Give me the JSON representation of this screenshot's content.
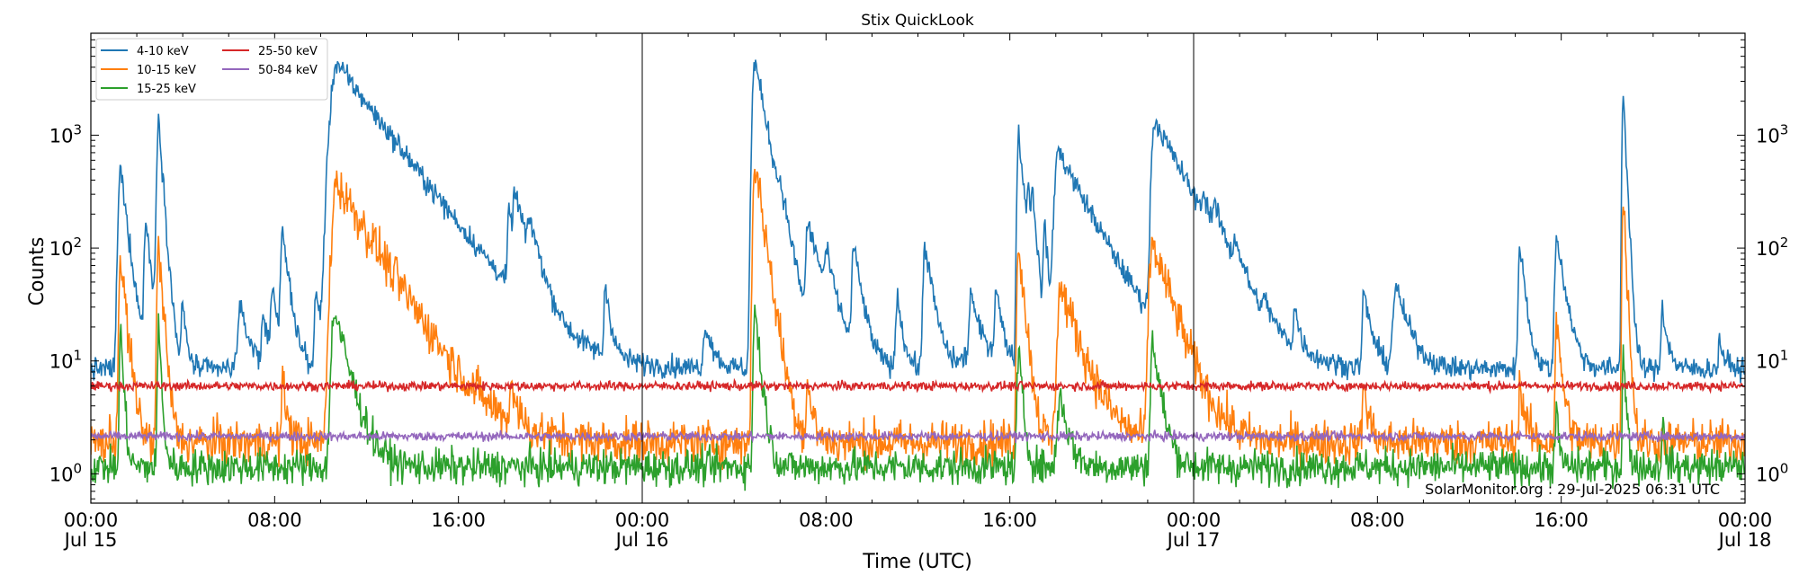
{
  "chart_data": {
    "type": "line",
    "title": "Stix QuickLook",
    "xlabel": "Time (UTC)",
    "ylabel": "Counts",
    "yscale": "log",
    "ylim": [
      0.55,
      8000
    ],
    "xlim_hours": [
      0,
      72
    ],
    "day_dividers_hours": [
      24,
      48
    ],
    "x_ticks": [
      {
        "h": 0,
        "time": "00:00",
        "date": "Jul 15"
      },
      {
        "h": 8,
        "time": "08:00",
        "date": ""
      },
      {
        "h": 16,
        "time": "16:00",
        "date": ""
      },
      {
        "h": 24,
        "time": "00:00",
        "date": "Jul 16"
      },
      {
        "h": 32,
        "time": "08:00",
        "date": ""
      },
      {
        "h": 40,
        "time": "16:00",
        "date": ""
      },
      {
        "h": 48,
        "time": "00:00",
        "date": "Jul 17"
      },
      {
        "h": 56,
        "time": "08:00",
        "date": ""
      },
      {
        "h": 64,
        "time": "16:00",
        "date": ""
      },
      {
        "h": 72,
        "time": "00:00",
        "date": "Jul 18"
      }
    ],
    "y_ticks": [
      {
        "v": 1,
        "base": "10",
        "exp": "0"
      },
      {
        "v": 10,
        "base": "10",
        "exp": "1"
      },
      {
        "v": 100,
        "base": "10",
        "exp": "2"
      },
      {
        "v": 1000,
        "base": "10",
        "exp": "3"
      }
    ],
    "legend_position": "upper-left",
    "credit": "SolarMonitor.org : 29-Jul-2025 06:31 UTC",
    "series": [
      {
        "name": "4-10 keV",
        "color": "#1f77b4",
        "baseline": 8.5,
        "noise": 0.05,
        "peaks": [
          [
            1.3,
            500,
            0.08,
            0.25
          ],
          [
            2.4,
            170,
            0.06,
            0.2
          ],
          [
            2.95,
            1450,
            0.06,
            0.15
          ],
          [
            4,
            30,
            0.05,
            0.15
          ],
          [
            6.5,
            28,
            0.1,
            0.4
          ],
          [
            7.5,
            25,
            0.05,
            0.2
          ],
          [
            7.9,
            45,
            0.06,
            0.25
          ],
          [
            8.35,
            130,
            0.06,
            0.25
          ],
          [
            9.8,
            40,
            0.05,
            0.2
          ],
          [
            10.3,
            75,
            0.05,
            0.2
          ],
          [
            10.7,
            4300,
            0.2,
            1.6
          ],
          [
            13.5,
            12,
            0.3,
            1
          ],
          [
            18.2,
            170,
            0.05,
            0.4
          ],
          [
            18.45,
            200,
            0.05,
            0.5
          ],
          [
            19.1,
            100,
            0.05,
            0.4
          ],
          [
            22.4,
            45,
            0.05,
            0.2
          ],
          [
            26.8,
            20,
            0.1,
            0.3
          ],
          [
            28.9,
            4600,
            0.08,
            0.4
          ],
          [
            30.0,
            120,
            0.06,
            0.3
          ],
          [
            31.2,
            150,
            0.06,
            0.6
          ],
          [
            32.0,
            60,
            0.05,
            0.3
          ],
          [
            33.2,
            100,
            0.06,
            0.3
          ],
          [
            35.1,
            40,
            0.05,
            0.2
          ],
          [
            36.3,
            110,
            0.06,
            0.3
          ],
          [
            38.3,
            40,
            0.05,
            0.2
          ],
          [
            39.4,
            45,
            0.05,
            0.2
          ],
          [
            38.8,
            15,
            0.5,
            1
          ],
          [
            40.38,
            1050,
            0.05,
            0.2
          ],
          [
            40.8,
            280,
            0.04,
            0.15
          ],
          [
            41.0,
            220,
            0.04,
            0.15
          ],
          [
            41.5,
            160,
            0.04,
            0.15
          ],
          [
            42.1,
            730,
            0.12,
            1.1
          ],
          [
            46.3,
            1350,
            0.1,
            1.1
          ],
          [
            48.4,
            110,
            0.05,
            0.4
          ],
          [
            48.9,
            90,
            0.05,
            0.4
          ],
          [
            49.8,
            60,
            0.06,
            0.3
          ],
          [
            51.1,
            20,
            0.05,
            0.2
          ],
          [
            52.4,
            25,
            0.05,
            0.2
          ],
          [
            55.4,
            40,
            0.05,
            0.3
          ],
          [
            56.8,
            45,
            0.1,
            0.5
          ],
          [
            62.2,
            115,
            0.05,
            0.2
          ],
          [
            63.8,
            130,
            0.06,
            0.3
          ],
          [
            66.7,
            2400,
            0.04,
            0.1
          ],
          [
            68.4,
            30,
            0.05,
            0.2
          ],
          [
            70.9,
            15,
            0.05,
            0.2
          ]
        ]
      },
      {
        "name": "10-15 keV",
        "color": "#ff7f0e",
        "baseline": 1.9,
        "noise": 0.1,
        "peaks": [
          [
            1.3,
            80,
            0.06,
            0.2
          ],
          [
            2.95,
            110,
            0.05,
            0.15
          ],
          [
            8.35,
            6,
            0.05,
            0.2
          ],
          [
            10.7,
            380,
            0.15,
            1.3
          ],
          [
            18.3,
            6,
            0.05,
            0.2
          ],
          [
            28.9,
            600,
            0.06,
            0.3
          ],
          [
            40.38,
            120,
            0.05,
            0.2
          ],
          [
            42.2,
            45,
            0.1,
            0.7
          ],
          [
            46.2,
            110,
            0.1,
            0.7
          ],
          [
            31.2,
            6,
            0.05,
            0.2
          ],
          [
            63.8,
            20,
            0.05,
            0.2
          ],
          [
            66.7,
            290,
            0.04,
            0.1
          ],
          [
            55.4,
            6,
            0.05,
            0.2
          ],
          [
            62.2,
            6,
            0.05,
            0.2
          ]
        ]
      },
      {
        "name": "15-25 keV",
        "color": "#2ca02c",
        "baseline": 1.15,
        "noise": 0.08,
        "peaks": [
          [
            1.3,
            20,
            0.04,
            0.1
          ],
          [
            2.95,
            20,
            0.04,
            0.1
          ],
          [
            10.6,
            28,
            0.1,
            0.5
          ],
          [
            28.9,
            30,
            0.05,
            0.2
          ],
          [
            40.38,
            12,
            0.05,
            0.15
          ],
          [
            42.2,
            5,
            0.1,
            0.3
          ],
          [
            46.2,
            15,
            0.06,
            0.3
          ],
          [
            63.8,
            3.5,
            0.05,
            0.1
          ],
          [
            66.7,
            12,
            0.03,
            0.1
          ],
          [
            68.4,
            3,
            0.03,
            0.1
          ]
        ]
      },
      {
        "name": "25-50 keV",
        "color": "#d62728",
        "baseline": 6.0,
        "noise": 0.02,
        "peaks": []
      },
      {
        "name": "50-84 keV",
        "color": "#9467bd",
        "baseline": 2.15,
        "noise": 0.02,
        "peaks": []
      }
    ]
  }
}
